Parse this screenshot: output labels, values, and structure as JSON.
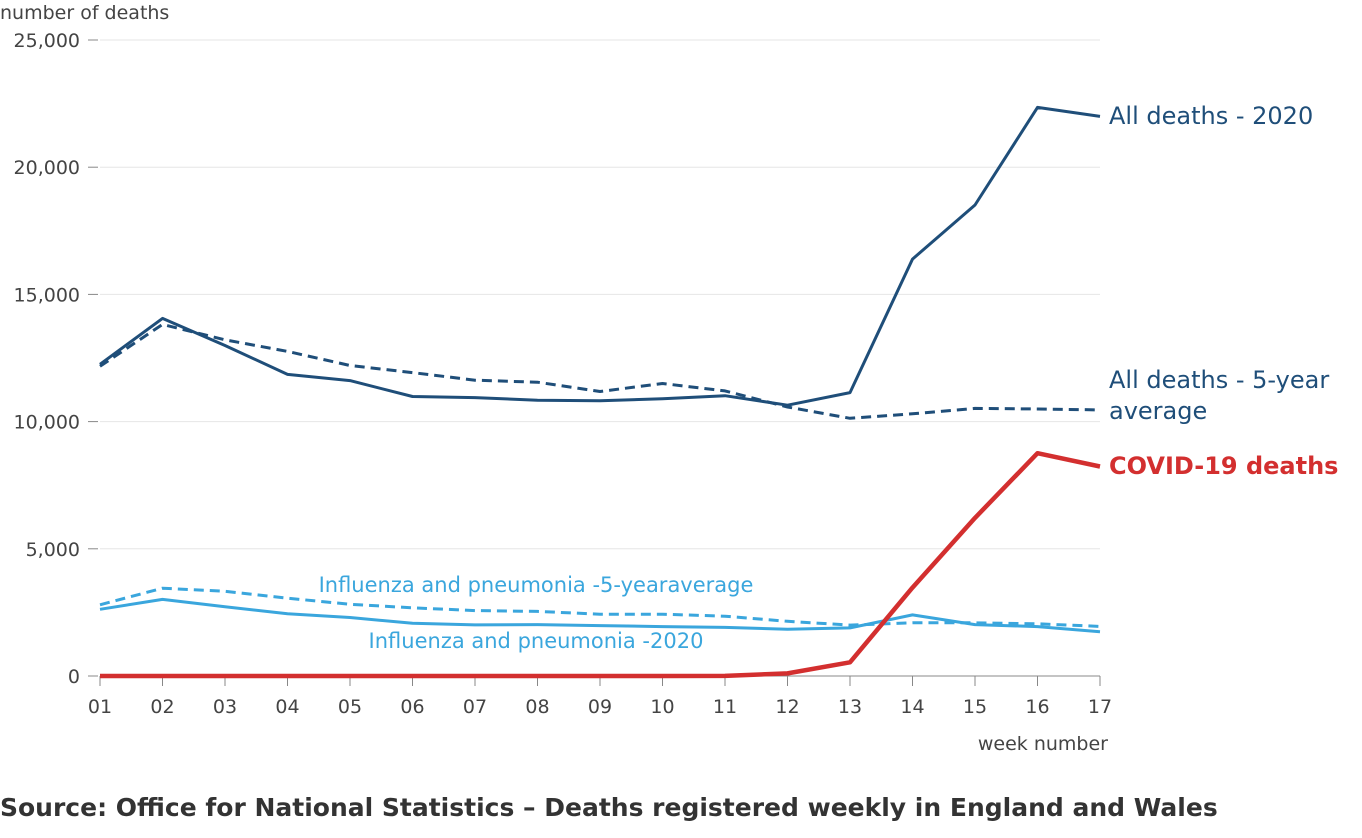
{
  "chart_data": {
    "type": "line",
    "ylabel": "number of deaths",
    "xlabel": "week number",
    "x": [
      "01",
      "02",
      "03",
      "04",
      "05",
      "06",
      "07",
      "08",
      "09",
      "10",
      "11",
      "12",
      "13",
      "14",
      "15",
      "16",
      "17"
    ],
    "ylim": [
      0,
      25000
    ],
    "yticks": [
      0,
      5000,
      10000,
      15000,
      20000,
      25000
    ],
    "ytick_labels": [
      "0",
      "5,000",
      "10,000",
      "15,000",
      "20,000",
      "25,000"
    ],
    "grid": "horizontal",
    "series": [
      {
        "name": "All deaths - 2020",
        "label_lines": [
          "All deaths - 2020"
        ],
        "color": "#1f4e79",
        "style": "solid",
        "values": [
          12254,
          14058,
          12990,
          11856,
          11612,
          10986,
          10944,
          10841,
          10816,
          10895,
          11019,
          10645,
          11141,
          16387,
          18516,
          22351,
          21997
        ]
      },
      {
        "name": "All deaths - 5-year average",
        "label_lines": [
          "All deaths - 5-year",
          "average"
        ],
        "color": "#1f4e79",
        "style": "dashed",
        "values": [
          12175,
          13822,
          13216,
          12760,
          12206,
          11925,
          11627,
          11548,
          11183,
          11498,
          11205,
          10573,
          10130,
          10305,
          10520,
          10497,
          10458
        ]
      },
      {
        "name": "COVID-19 deaths",
        "label_lines": [
          "COVID-19 deaths"
        ],
        "color": "#d32f2f",
        "style": "solid",
        "values": [
          0,
          0,
          0,
          0,
          0,
          0,
          0,
          0,
          0,
          0,
          5,
          103,
          539,
          3475,
          6213,
          8758,
          8237
        ]
      },
      {
        "name": "Influenza and pneumonia -5-yearaverage",
        "label_lines": [
          "Influenza and pneumonia -5-yearaverage"
        ],
        "color": "#3aa6dd",
        "style": "dashed",
        "values": [
          2800,
          3450,
          3330,
          3060,
          2820,
          2680,
          2570,
          2540,
          2430,
          2430,
          2350,
          2150,
          2000,
          2090,
          2090,
          2050,
          1950
        ]
      },
      {
        "name": "Influenza and pneumonia -2020",
        "label_lines": [
          "Influenza and pneumonia -2020"
        ],
        "color": "#3aa6dd",
        "style": "solid",
        "values": [
          2620,
          3010,
          2720,
          2450,
          2300,
          2070,
          2010,
          2020,
          1980,
          1940,
          1910,
          1840,
          1890,
          2400,
          2020,
          1940,
          1740
        ]
      }
    ]
  },
  "source_note": "Source: Office for National Statistics – Deaths registered weekly in England and Wales"
}
